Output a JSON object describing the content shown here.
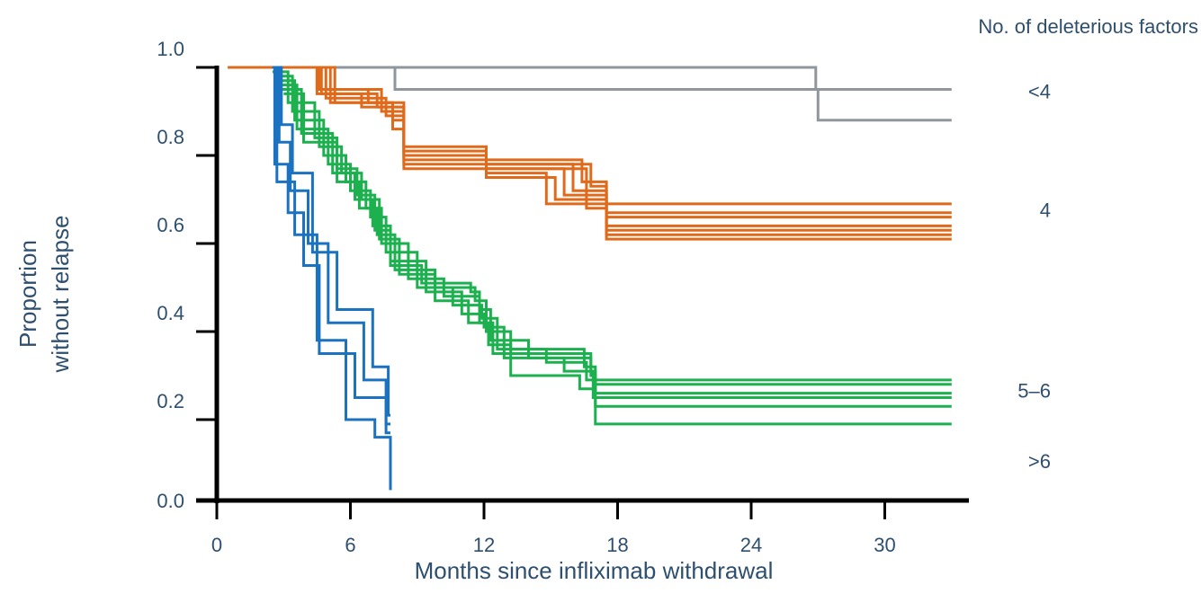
{
  "chart_data": {
    "type": "line",
    "step": true,
    "xlabel": "Months since infliximab withdrawal",
    "ylabel_line1": "Proportion",
    "ylabel_line2": "without relapse",
    "xlim": [
      0,
      33
    ],
    "ylim": [
      0,
      1
    ],
    "xticks": [
      0,
      6,
      12,
      18,
      24,
      30
    ],
    "xtick_labels": [
      "0",
      "6",
      "12",
      "18",
      "24",
      "30"
    ],
    "yticks": [
      0,
      0.2,
      0.4,
      0.6,
      0.8,
      1.0
    ],
    "ytick_labels": [
      "0.0",
      "0.2",
      "0.4",
      "0.6",
      "0.8",
      "1.0"
    ],
    "grid": false,
    "legend_title": "No. of deleterious factors",
    "groups": [
      {
        "label": "<4",
        "color": "#8f979c",
        "label_y": 0.93,
        "series": [
          {
            "x": [
              0.5,
              8.0,
              33.0
            ],
            "y": [
              1.0,
              0.95,
              0.95
            ]
          },
          {
            "x": [
              0.5,
              26.9,
              27.0,
              33.0
            ],
            "y": [
              1.0,
              0.95,
              0.88,
              0.88
            ]
          }
        ]
      },
      {
        "label": "4",
        "color": "#e06a1b",
        "label_y": 0.66,
        "series": [
          {
            "x": [
              0.5,
              4.5,
              6.5,
              8.4,
              12.1,
              16.8,
              17.5,
              33.0
            ],
            "y": [
              1.0,
              0.94,
              0.91,
              0.8,
              0.78,
              0.73,
              0.69,
              0.69
            ]
          },
          {
            "x": [
              0.5,
              4.5,
              6.8,
              8.4,
              12.1,
              16.4,
              17.5,
              33.0
            ],
            "y": [
              1.0,
              0.95,
              0.92,
              0.8,
              0.79,
              0.74,
              0.67,
              0.67
            ]
          },
          {
            "x": [
              0.5,
              4.7,
              7.2,
              8.4,
              12.1,
              16.0,
              17.5,
              33.0
            ],
            "y": [
              1.0,
              0.94,
              0.91,
              0.82,
              0.78,
              0.72,
              0.66,
              0.66
            ]
          },
          {
            "x": [
              0.5,
              4.9,
              7.6,
              8.4,
              12.1,
              15.6,
              17.5,
              33.0
            ],
            "y": [
              1.0,
              0.93,
              0.89,
              0.78,
              0.77,
              0.71,
              0.64,
              0.64
            ]
          },
          {
            "x": [
              0.5,
              5.1,
              7.9,
              8.4,
              12.1,
              15.2,
              17.5,
              33.0
            ],
            "y": [
              1.0,
              0.92,
              0.88,
              0.79,
              0.75,
              0.7,
              0.63,
              0.63
            ]
          },
          {
            "x": [
              0.5,
              5.3,
              7.9,
              8.4,
              12.1,
              14.8,
              17.5,
              33.0
            ],
            "y": [
              1.0,
              0.92,
              0.86,
              0.77,
              0.76,
              0.69,
              0.62,
              0.62
            ]
          },
          {
            "x": [
              0.5,
              4.6,
              7.4,
              8.4,
              12.1,
              16.6,
              17.5,
              33.0
            ],
            "y": [
              1.0,
              0.95,
              0.9,
              0.81,
              0.77,
              0.68,
              0.61,
              0.61
            ]
          }
        ]
      },
      {
        "label": "5–6",
        "color": "#1db04f",
        "label_y": 0.25,
        "series": [
          {
            "x": [
              2.5,
              3.2,
              4.4,
              5.4,
              6.3,
              7.1,
              7.8,
              9.2,
              11.4,
              11.8,
              12.4,
              16.8,
              17.0,
              33.0
            ],
            "y": [
              0.99,
              0.92,
              0.84,
              0.77,
              0.71,
              0.63,
              0.55,
              0.51,
              0.49,
              0.42,
              0.35,
              0.31,
              0.29,
              0.29
            ]
          },
          {
            "x": [
              2.6,
              3.4,
              4.6,
              5.6,
              6.5,
              7.3,
              8.2,
              9.8,
              11.6,
              12.1,
              13.2,
              16.5,
              17.0,
              33.0
            ],
            "y": [
              0.98,
              0.9,
              0.82,
              0.76,
              0.7,
              0.61,
              0.53,
              0.5,
              0.47,
              0.4,
              0.36,
              0.32,
              0.28,
              0.28
            ]
          },
          {
            "x": [
              2.7,
              3.5,
              4.8,
              5.8,
              6.7,
              7.4,
              8.6,
              10.2,
              11.8,
              12.3,
              14.0,
              16.8,
              17.0,
              33.0
            ],
            "y": [
              0.97,
              0.88,
              0.8,
              0.74,
              0.68,
              0.6,
              0.52,
              0.48,
              0.45,
              0.38,
              0.34,
              0.3,
              0.26,
              0.26
            ]
          },
          {
            "x": [
              2.8,
              3.6,
              5.0,
              6.0,
              6.9,
              7.6,
              9.0,
              10.6,
              11.9,
              12.6,
              14.8,
              16.6,
              17.0,
              33.0
            ],
            "y": [
              0.96,
              0.86,
              0.78,
              0.72,
              0.66,
              0.58,
              0.5,
              0.46,
              0.43,
              0.36,
              0.33,
              0.29,
              0.25,
              0.25
            ]
          },
          {
            "x": [
              2.9,
              3.8,
              5.2,
              6.2,
              7.0,
              7.8,
              9.4,
              11.0,
              12.0,
              12.9,
              15.6,
              16.9,
              17.0,
              33.0
            ],
            "y": [
              0.95,
              0.85,
              0.76,
              0.7,
              0.64,
              0.56,
              0.49,
              0.44,
              0.41,
              0.34,
              0.31,
              0.27,
              0.23,
              0.23
            ]
          },
          {
            "x": [
              3.0,
              3.9,
              5.4,
              6.4,
              7.2,
              8.0,
              9.8,
              11.3,
              12.2,
              13.2,
              16.3,
              16.9,
              17.0,
              33.0
            ],
            "y": [
              0.94,
              0.83,
              0.74,
              0.68,
              0.62,
              0.54,
              0.47,
              0.42,
              0.37,
              0.3,
              0.27,
              0.25,
              0.19,
              0.19
            ]
          }
        ]
      },
      {
        "label": ">6",
        "color": "#1a72c0",
        "label_y": 0.09,
        "series": [
          {
            "x": [
              2.5,
              2.9,
              3.4,
              4.3,
              5.4,
              7.0,
              7.7,
              7.8
            ],
            "y": [
              1.0,
              0.87,
              0.76,
              0.58,
              0.45,
              0.32,
              0.21,
              0.21
            ]
          },
          {
            "x": [
              2.5,
              2.8,
              3.3,
              4.1,
              5.0,
              6.6,
              7.6,
              7.8
            ],
            "y": [
              1.0,
              0.83,
              0.72,
              0.6,
              0.42,
              0.29,
              0.19,
              0.19
            ]
          },
          {
            "x": [
              2.5,
              2.6,
              3.2,
              3.9,
              4.6,
              6.2,
              7.6,
              7.8
            ],
            "y": [
              1.0,
              0.78,
              0.67,
              0.55,
              0.35,
              0.25,
              0.17,
              0.17
            ]
          },
          {
            "x": [
              2.5,
              2.7,
              3.5,
              4.5,
              5.8,
              7.1,
              7.8
            ],
            "y": [
              1.0,
              0.74,
              0.62,
              0.38,
              0.2,
              0.16,
              0.04
            ]
          }
        ]
      }
    ]
  }
}
